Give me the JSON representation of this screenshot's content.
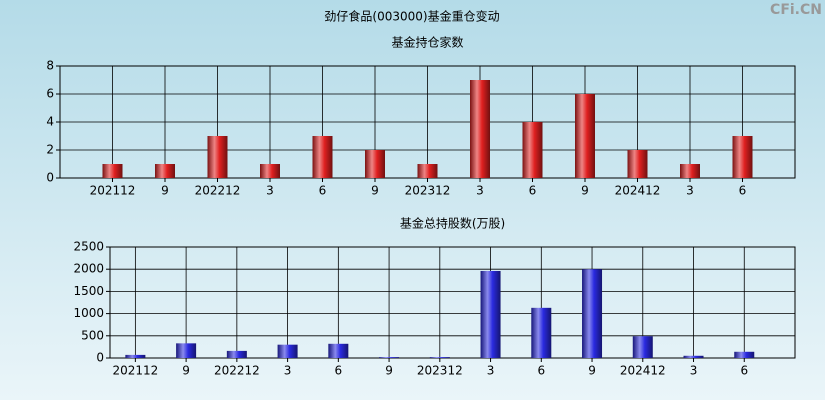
{
  "title": "劲仔食品(003000)基金重仓变动",
  "watermark": "CFi.CN",
  "chart_data": [
    {
      "type": "bar",
      "title": "基金持仓家数",
      "color": "#e02020",
      "categories": [
        "202112",
        "9",
        "202212",
        "3",
        "6",
        "9",
        "202312",
        "3",
        "6",
        "9",
        "202412",
        "3",
        "6"
      ],
      "values": [
        1,
        1,
        3,
        1,
        3,
        2,
        1,
        7,
        4,
        6,
        2,
        1,
        3
      ],
      "ylim": [
        0,
        8
      ],
      "yticks": [
        0,
        2,
        4,
        6,
        8
      ],
      "grid": true
    },
    {
      "type": "bar",
      "title": "基金总持股数(万股)",
      "color": "#2a2ae0",
      "categories": [
        "202112",
        "9",
        "202212",
        "3",
        "6",
        "9",
        "202312",
        "3",
        "6",
        "9",
        "202412",
        "3",
        "6"
      ],
      "values": [
        70,
        330,
        160,
        300,
        320,
        20,
        20,
        1960,
        1130,
        2000,
        490,
        50,
        140
      ],
      "ylim": [
        0,
        2500
      ],
      "yticks": [
        0,
        500,
        1000,
        1500,
        2000,
        2500
      ],
      "grid": true
    }
  ]
}
